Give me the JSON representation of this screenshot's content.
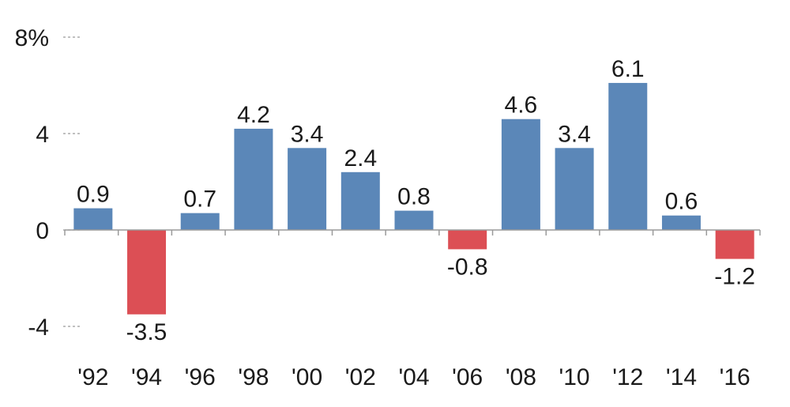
{
  "chart_data": {
    "type": "bar",
    "categories": [
      "'92",
      "'94",
      "'96",
      "'98",
      "'00",
      "'02",
      "'04",
      "'06",
      "'08",
      "'10",
      "'12",
      "'14",
      "'16"
    ],
    "values": [
      0.9,
      -3.5,
      0.7,
      4.2,
      3.4,
      2.4,
      0.8,
      -0.8,
      4.6,
      3.4,
      6.1,
      0.6,
      -1.2
    ],
    "value_labels": [
      "0.9",
      "-3.5",
      "0.7",
      "4.2",
      "3.4",
      "2.4",
      "0.8",
      "-0.8",
      "4.6",
      "3.4",
      "6.1",
      "0.6",
      "-1.2"
    ],
    "y_ticks": [
      8,
      4,
      0,
      -4
    ],
    "y_tick_labels": [
      "8%",
      "4",
      "0",
      "-4"
    ],
    "ylim": [
      -4,
      8
    ],
    "title": "",
    "xlabel": "",
    "ylabel": "",
    "grid": false,
    "colors": {
      "positive": "#5b87b8",
      "negative": "#dc4f55",
      "axis": "#9a9a9a",
      "text": "#1a1a1a"
    }
  }
}
